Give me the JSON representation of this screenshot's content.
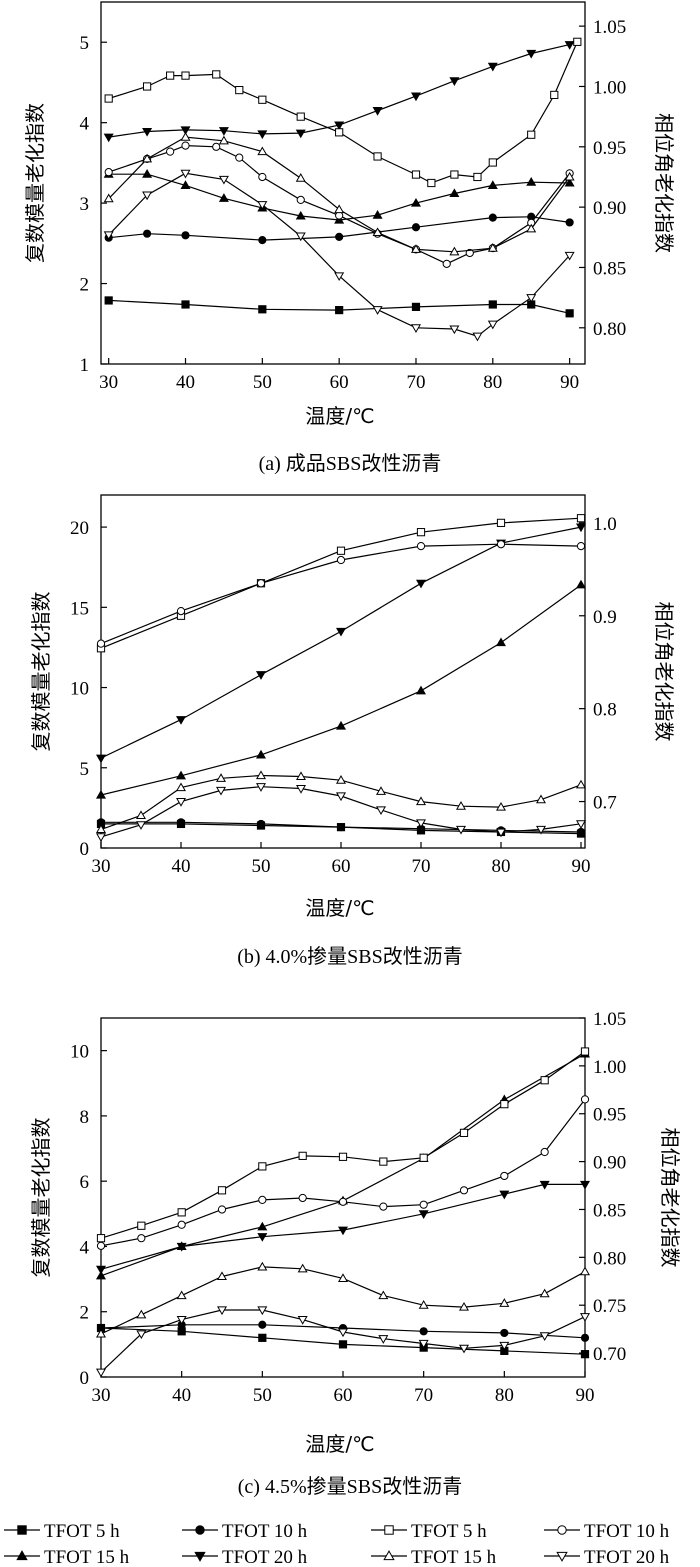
{
  "legend": [
    {
      "label": "TFOT 5 h",
      "marker": "square",
      "filled": true
    },
    {
      "label": "TFOT 10 h",
      "marker": "circle",
      "filled": true
    },
    {
      "label": "TFOT 5 h",
      "marker": "square",
      "filled": false
    },
    {
      "label": "TFOT 10 h",
      "marker": "circle",
      "filled": false
    },
    {
      "label": "TFOT 15 h",
      "marker": "triangle-up",
      "filled": true
    },
    {
      "label": "TFOT 20 h",
      "marker": "triangle-down",
      "filled": true
    },
    {
      "label": "TFOT 15 h",
      "marker": "triangle-up",
      "filled": false
    },
    {
      "label": "TFOT 20 h",
      "marker": "triangle-down",
      "filled": false
    }
  ],
  "chart_data": [
    {
      "type": "line",
      "caption": "(a) 成品SBS改性沥青",
      "xlabel": "温度/℃",
      "ylabel_left": "复数模量老化指数",
      "ylabel_right": "相位角老化指数",
      "xlim": [
        29,
        92
      ],
      "xticks": [
        30,
        40,
        50,
        60,
        70,
        80,
        90
      ],
      "ylim_left": [
        1,
        5.5
      ],
      "yticks_left": [
        1,
        2,
        3,
        4,
        5
      ],
      "ylim_right": [
        0.77,
        1.07
      ],
      "yticks_right": [
        "0.80",
        "0.85",
        "0.90",
        "0.95",
        "1.00",
        "1.05"
      ],
      "series": [
        {
          "name": "TFOT 5 h",
          "axis": "left",
          "marker": "square",
          "filled": true,
          "x": [
            30,
            40,
            50,
            60,
            70,
            80,
            85,
            90
          ],
          "y": [
            1.79,
            1.74,
            1.68,
            1.67,
            1.71,
            1.74,
            1.74,
            1.63
          ]
        },
        {
          "name": "TFOT 10 h",
          "axis": "left",
          "marker": "circle",
          "filled": true,
          "x": [
            30,
            35,
            40,
            50,
            60,
            70,
            80,
            85,
            90
          ],
          "y": [
            2.57,
            2.62,
            2.6,
            2.54,
            2.58,
            2.7,
            2.82,
            2.83,
            2.76
          ]
        },
        {
          "name": "TFOT 15 h",
          "axis": "left",
          "marker": "triangle-up",
          "filled": true,
          "x": [
            30,
            35,
            40,
            45,
            50,
            55,
            60,
            65,
            70,
            75,
            80,
            85,
            90
          ],
          "y": [
            3.36,
            3.36,
            3.22,
            3.06,
            2.94,
            2.84,
            2.79,
            2.85,
            3.0,
            3.12,
            3.22,
            3.26,
            3.25
          ]
        },
        {
          "name": "TFOT 20 h",
          "axis": "left",
          "marker": "triangle-down",
          "filled": true,
          "x": [
            30,
            35,
            40,
            45,
            50,
            55,
            60,
            65,
            70,
            75,
            80,
            85,
            90
          ],
          "y": [
            3.82,
            3.89,
            3.91,
            3.9,
            3.86,
            3.87,
            3.97,
            4.15,
            4.33,
            4.52,
            4.7,
            4.86,
            4.97
          ]
        },
        {
          "name": "TFOT 5 h",
          "axis": "right",
          "marker": "square",
          "filled": false,
          "x": [
            30,
            35,
            38,
            40,
            44,
            47,
            50,
            55,
            60,
            65,
            70,
            72,
            75,
            78,
            80,
            85,
            88,
            91
          ],
          "y": [
            0.99,
            1.0,
            1.009,
            1.009,
            1.01,
            0.997,
            0.989,
            0.975,
            0.962,
            0.942,
            0.927,
            0.92,
            0.927,
            0.925,
            0.937,
            0.96,
            0.993,
            1.037
          ]
        },
        {
          "name": "TFOT 10 h",
          "axis": "right",
          "marker": "circle",
          "filled": false,
          "x": [
            30,
            35,
            38,
            40,
            44,
            47,
            50,
            55,
            60,
            65,
            70,
            74,
            77,
            80,
            85,
            90
          ],
          "y": [
            0.929,
            0.94,
            0.946,
            0.951,
            0.95,
            0.941,
            0.925,
            0.906,
            0.893,
            0.878,
            0.865,
            0.853,
            0.862,
            0.866,
            0.887,
            0.928
          ]
        },
        {
          "name": "TFOT 15 h",
          "axis": "right",
          "marker": "triangle-up",
          "filled": false,
          "x": [
            30,
            35,
            40,
            45,
            50,
            55,
            60,
            65,
            70,
            75,
            80,
            85,
            90
          ],
          "y": [
            0.907,
            0.94,
            0.958,
            0.955,
            0.946,
            0.924,
            0.898,
            0.879,
            0.865,
            0.863,
            0.866,
            0.882,
            0.925
          ]
        },
        {
          "name": "TFOT 20 h",
          "axis": "right",
          "marker": "triangle-down",
          "filled": false,
          "x": [
            30,
            35,
            40,
            45,
            50,
            55,
            60,
            65,
            70,
            75,
            78,
            80,
            85,
            90
          ],
          "y": [
            0.877,
            0.91,
            0.928,
            0.923,
            0.902,
            0.876,
            0.843,
            0.815,
            0.8,
            0.799,
            0.793,
            0.803,
            0.825,
            0.86
          ]
        }
      ]
    },
    {
      "type": "line",
      "caption": "(b) 4.0%掺量SBS改性沥青",
      "xlabel": "温度/℃",
      "ylabel_left": "复数模量老化指数",
      "ylabel_right": "相位角老化指数",
      "xlim": [
        30,
        90.5
      ],
      "xticks": [
        30,
        40,
        50,
        60,
        70,
        80,
        90
      ],
      "ylim_left": [
        0,
        22
      ],
      "yticks_left": [
        0,
        5,
        10,
        15,
        20
      ],
      "ylim_right": [
        0.65,
        1.03
      ],
      "yticks_right": [
        "0.7",
        "0.8",
        "0.9",
        "1.0"
      ],
      "series": [
        {
          "name": "TFOT 5 h",
          "axis": "left",
          "marker": "square",
          "filled": true,
          "x": [
            30,
            40,
            50,
            60,
            70,
            80,
            90
          ],
          "y": [
            1.5,
            1.5,
            1.4,
            1.3,
            1.1,
            1.0,
            0.9
          ]
        },
        {
          "name": "TFOT 10 h",
          "axis": "left",
          "marker": "circle",
          "filled": true,
          "x": [
            30,
            40,
            50,
            60,
            70,
            80,
            90
          ],
          "y": [
            1.6,
            1.6,
            1.5,
            1.3,
            1.2,
            1.1,
            1.0
          ]
        },
        {
          "name": "TFOT 15 h",
          "axis": "left",
          "marker": "triangle-up",
          "filled": true,
          "x": [
            30,
            40,
            50,
            60,
            70,
            80,
            90
          ],
          "y": [
            3.3,
            4.5,
            5.8,
            7.6,
            9.8,
            12.8,
            16.4
          ]
        },
        {
          "name": "TFOT 20 h",
          "axis": "left",
          "marker": "triangle-down",
          "filled": true,
          "x": [
            30,
            40,
            50,
            60,
            70,
            80,
            90
          ],
          "y": [
            5.6,
            8.0,
            10.8,
            13.5,
            16.5,
            19.0,
            20.0
          ]
        },
        {
          "name": "TFOT 5 h",
          "axis": "right",
          "marker": "square",
          "filled": false,
          "x": [
            30,
            40,
            50,
            60,
            70,
            80,
            90
          ],
          "y": [
            0.865,
            0.9,
            0.935,
            0.97,
            0.99,
            1.0,
            1.005
          ]
        },
        {
          "name": "TFOT 10 h",
          "axis": "right",
          "marker": "circle",
          "filled": false,
          "x": [
            30,
            40,
            50,
            60,
            70,
            80,
            90
          ],
          "y": [
            0.87,
            0.905,
            0.935,
            0.96,
            0.975,
            0.977,
            0.975
          ]
        },
        {
          "name": "TFOT 15 h",
          "axis": "right",
          "marker": "triangle-up",
          "filled": false,
          "x": [
            30,
            35,
            40,
            45,
            50,
            55,
            60,
            65,
            70,
            75,
            80,
            85,
            90
          ],
          "y": [
            0.67,
            0.685,
            0.715,
            0.725,
            0.728,
            0.727,
            0.723,
            0.711,
            0.7,
            0.695,
            0.694,
            0.702,
            0.718
          ]
        },
        {
          "name": "TFOT 20 h",
          "axis": "right",
          "marker": "triangle-down",
          "filled": false,
          "x": [
            30,
            35,
            40,
            45,
            50,
            55,
            60,
            65,
            70,
            75,
            80,
            85,
            90
          ],
          "y": [
            0.662,
            0.675,
            0.7,
            0.712,
            0.716,
            0.714,
            0.706,
            0.691,
            0.677,
            0.67,
            0.667,
            0.67,
            0.676
          ]
        }
      ]
    },
    {
      "type": "line",
      "caption": "(c) 4.5%掺量SBS改性沥青",
      "xlabel": "温度/℃",
      "ylabel_left": "复数模量老化指数",
      "ylabel_right": "相位角老化指数",
      "xlim": [
        30,
        90
      ],
      "xticks": [
        30,
        40,
        50,
        60,
        70,
        80,
        90
      ],
      "ylim_left": [
        0,
        11
      ],
      "yticks_left": [
        0,
        2,
        4,
        6,
        8,
        10
      ],
      "ylim_right": [
        0.675,
        1.05
      ],
      "yticks_right": [
        "0.70",
        "0.75",
        "0.80",
        "0.85",
        "0.90",
        "0.95",
        "1.00",
        "1.05"
      ],
      "series": [
        {
          "name": "TFOT 5 h",
          "axis": "left",
          "marker": "square",
          "filled": true,
          "x": [
            30,
            40,
            50,
            60,
            70,
            80,
            90
          ],
          "y": [
            1.5,
            1.4,
            1.2,
            1.0,
            0.9,
            0.8,
            0.7
          ]
        },
        {
          "name": "TFOT 10 h",
          "axis": "left",
          "marker": "circle",
          "filled": true,
          "x": [
            30,
            40,
            50,
            60,
            70,
            80,
            90
          ],
          "y": [
            1.5,
            1.6,
            1.6,
            1.5,
            1.4,
            1.35,
            1.2
          ]
        },
        {
          "name": "TFOT 15 h",
          "axis": "left",
          "marker": "triangle-up",
          "filled": true,
          "x": [
            30,
            40,
            50,
            60,
            70,
            80,
            90
          ],
          "y": [
            3.1,
            4.0,
            4.6,
            5.4,
            6.7,
            8.5,
            9.9
          ]
        },
        {
          "name": "TFOT 20 h",
          "axis": "left",
          "marker": "triangle-down",
          "filled": true,
          "x": [
            30,
            40,
            50,
            60,
            70,
            80,
            85,
            90
          ],
          "y": [
            3.3,
            4.0,
            4.3,
            4.5,
            5.0,
            5.6,
            5.9,
            5.9
          ]
        },
        {
          "name": "TFOT 5 h",
          "axis": "right",
          "marker": "square",
          "filled": false,
          "x": [
            30,
            35,
            40,
            45,
            50,
            55,
            60,
            65,
            70,
            75,
            80,
            85,
            90
          ],
          "y": [
            0.82,
            0.833,
            0.847,
            0.87,
            0.895,
            0.906,
            0.905,
            0.9,
            0.904,
            0.93,
            0.96,
            0.985,
            1.015
          ]
        },
        {
          "name": "TFOT 10 h",
          "axis": "right",
          "marker": "circle",
          "filled": false,
          "x": [
            30,
            35,
            40,
            45,
            50,
            55,
            60,
            65,
            70,
            75,
            80,
            85,
            90
          ],
          "y": [
            0.812,
            0.82,
            0.834,
            0.85,
            0.86,
            0.862,
            0.858,
            0.853,
            0.855,
            0.87,
            0.885,
            0.91,
            0.965
          ]
        },
        {
          "name": "TFOT 15 h",
          "axis": "right",
          "marker": "triangle-up",
          "filled": false,
          "x": [
            30,
            35,
            40,
            45,
            50,
            55,
            60,
            65,
            70,
            75,
            80,
            85,
            90
          ],
          "y": [
            0.72,
            0.74,
            0.76,
            0.78,
            0.79,
            0.788,
            0.778,
            0.76,
            0.75,
            0.748,
            0.752,
            0.762,
            0.785
          ]
        },
        {
          "name": "TFOT 20 h",
          "axis": "right",
          "marker": "triangle-down",
          "filled": false,
          "x": [
            30,
            35,
            40,
            45,
            50,
            55,
            60,
            65,
            70,
            75,
            80,
            85,
            90
          ],
          "y": [
            0.68,
            0.72,
            0.735,
            0.745,
            0.745,
            0.735,
            0.722,
            0.715,
            0.71,
            0.705,
            0.708,
            0.718,
            0.738
          ]
        }
      ]
    }
  ]
}
